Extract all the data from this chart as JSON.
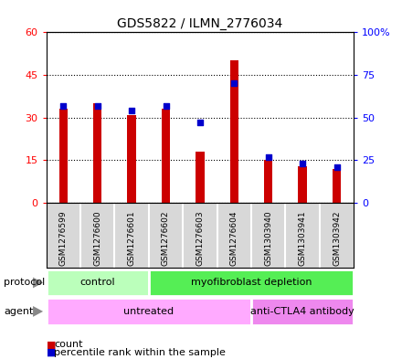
{
  "title": "GDS5822 / ILMN_2776034",
  "samples": [
    "GSM1276599",
    "GSM1276600",
    "GSM1276601",
    "GSM1276602",
    "GSM1276603",
    "GSM1276604",
    "GSM1303940",
    "GSM1303941",
    "GSM1303942"
  ],
  "counts": [
    33,
    35,
    31,
    33,
    18,
    50,
    15,
    13,
    12
  ],
  "percentiles": [
    57,
    57,
    54,
    57,
    47,
    70,
    27,
    23,
    21
  ],
  "left_ylim": [
    0,
    60
  ],
  "right_ylim": [
    0,
    100
  ],
  "left_yticks": [
    0,
    15,
    30,
    45,
    60
  ],
  "right_yticks": [
    0,
    25,
    50,
    75,
    100
  ],
  "right_yticklabels": [
    "0",
    "25",
    "50",
    "75",
    "100%"
  ],
  "bar_color": "#cc0000",
  "dot_color": "#0000cc",
  "protocol_groups": [
    {
      "label": "control",
      "start": 0,
      "end": 3,
      "color": "#bbffbb"
    },
    {
      "label": "myofibroblast depletion",
      "start": 3,
      "end": 9,
      "color": "#55ee55"
    }
  ],
  "agent_groups": [
    {
      "label": "untreated",
      "start": 0,
      "end": 6,
      "color": "#ffaaff"
    },
    {
      "label": "anti-CTLA4 antibody",
      "start": 6,
      "end": 9,
      "color": "#ee88ee"
    }
  ],
  "legend_count_label": "count",
  "legend_percentile_label": "percentile rank within the sample",
  "plot_bg": "#ffffff",
  "label_bg": "#d8d8d8",
  "grid_color": "#000000",
  "bar_width": 0.25
}
